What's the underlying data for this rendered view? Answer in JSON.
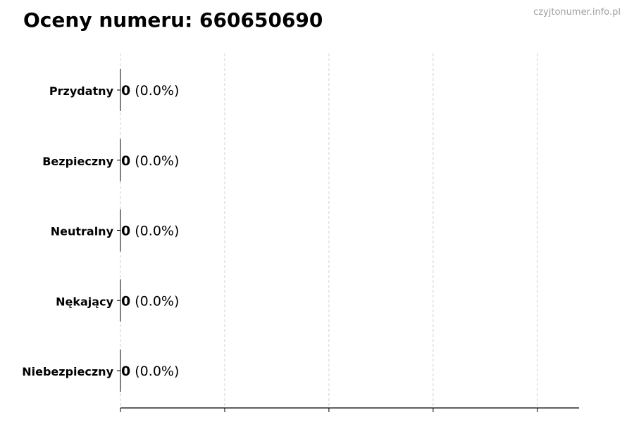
{
  "title": "Oceny numeru: 660650690",
  "watermark": "czyjtonumer.info.pl",
  "chart_data": {
    "type": "bar",
    "orientation": "horizontal",
    "title": "Oceny numeru: 660650690",
    "categories": [
      "Przydatny",
      "Bezpieczny",
      "Neutralny",
      "Nękający",
      "Niebezpieczny"
    ],
    "values": [
      0,
      0,
      0,
      0,
      0
    ],
    "data_labels": [
      {
        "count": "0",
        "percent": "(0.0%)"
      },
      {
        "count": "0",
        "percent": "(0.0%)"
      },
      {
        "count": "0",
        "percent": "(0.0%)"
      },
      {
        "count": "0",
        "percent": "(0.0%)"
      },
      {
        "count": "0",
        "percent": "(0.0%)"
      }
    ],
    "xlabel": "",
    "ylabel": "",
    "xlim": [
      0,
      4.4
    ],
    "xticks": [
      0,
      1,
      2,
      3,
      4
    ],
    "xtick_labels_shown": false,
    "grid": "vertical dashed",
    "legend": "none",
    "colors": {
      "bar_edge": "#000000",
      "grid": "#d0d0d0",
      "watermark": "#a0a0a0"
    }
  }
}
